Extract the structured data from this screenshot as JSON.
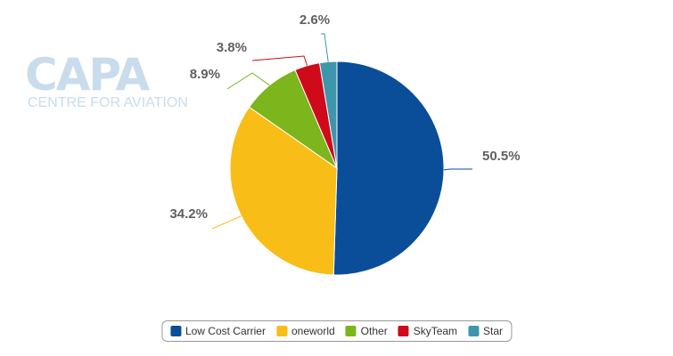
{
  "watermark": {
    "logo": "CAPA",
    "tagline": "CENTRE FOR AVIATION"
  },
  "chart_data": {
    "type": "pie",
    "start_angle_deg": 0,
    "direction": "clockwise",
    "series": [
      {
        "name": "Low Cost Carrier",
        "value": 50.5,
        "label": "50.5%",
        "color": "#0a4d99"
      },
      {
        "name": "oneworld",
        "value": 34.2,
        "label": "34.2%",
        "color": "#f8be17"
      },
      {
        "name": "Other",
        "value": 8.9,
        "label": "8.9%",
        "color": "#7cb51c"
      },
      {
        "name": "SkyTeam",
        "value": 3.8,
        "label": "3.8%",
        "color": "#cf0a1b"
      },
      {
        "name": "Star",
        "value": 2.6,
        "label": "2.6%",
        "color": "#3d96ac"
      }
    ],
    "legend_position": "bottom-center"
  }
}
